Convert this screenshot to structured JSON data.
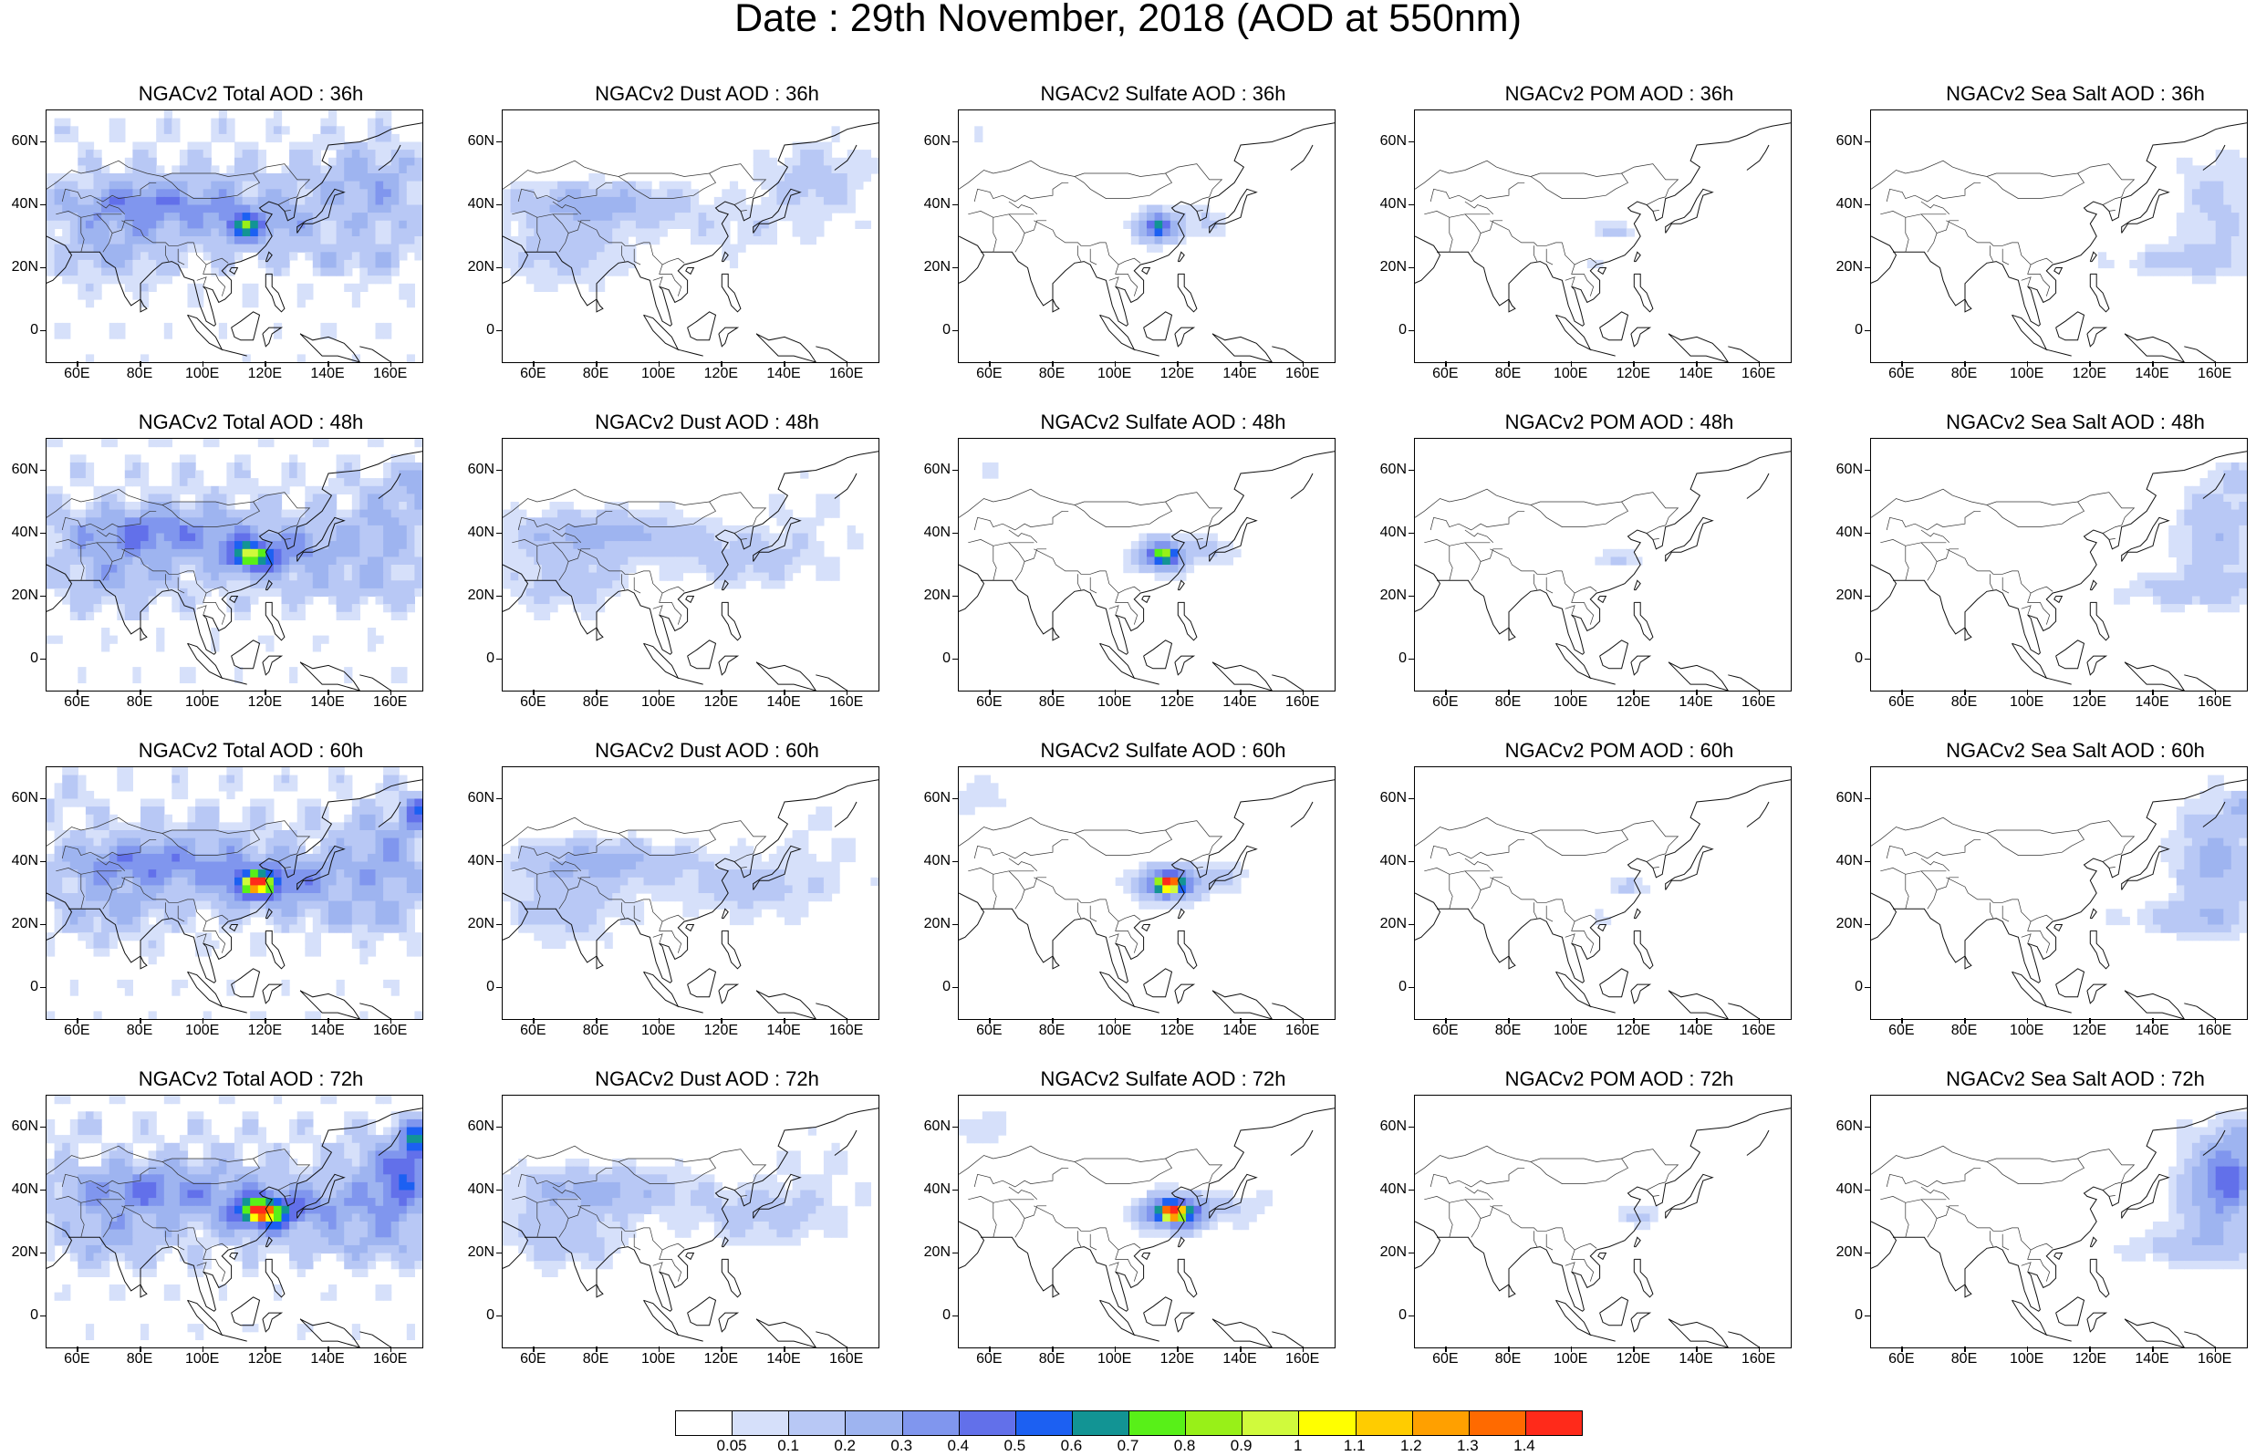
{
  "title": "Date : 29th November, 2018 (AOD at 550nm)",
  "axes": {
    "y_ticks": [
      "60N",
      "40N",
      "20N",
      "0"
    ],
    "x_ticks": [
      "60E",
      "80E",
      "100E",
      "120E",
      "140E",
      "160E"
    ]
  },
  "rows": [
    {
      "hour": "36h",
      "panels": [
        {
          "title": "NGACv2 Total AOD : 36h",
          "field": "total"
        },
        {
          "title": "NGACv2 Dust AOD : 36h",
          "field": "dust"
        },
        {
          "title": "NGACv2 Sulfate AOD : 36h",
          "field": "sulfate"
        },
        {
          "title": "NGACv2 POM AOD : 36h",
          "field": "pom"
        },
        {
          "title": "NGACv2 Sea Salt AOD : 36h",
          "field": "seasalt"
        }
      ]
    },
    {
      "hour": "48h",
      "panels": [
        {
          "title": "NGACv2 Total AOD : 48h",
          "field": "total"
        },
        {
          "title": "NGACv2 Dust AOD : 48h",
          "field": "dust"
        },
        {
          "title": "NGACv2 Sulfate AOD : 48h",
          "field": "sulfate"
        },
        {
          "title": "NGACv2 POM AOD : 48h",
          "field": "pom"
        },
        {
          "title": "NGACv2 Sea Salt AOD : 48h",
          "field": "seasalt"
        }
      ]
    },
    {
      "hour": "60h",
      "panels": [
        {
          "title": "NGACv2 Total AOD : 60h",
          "field": "total"
        },
        {
          "title": "NGACv2 Dust AOD : 60h",
          "field": "dust"
        },
        {
          "title": "NGACv2 Sulfate AOD : 60h",
          "field": "sulfate"
        },
        {
          "title": "NGACv2 POM AOD : 60h",
          "field": "pom"
        },
        {
          "title": "NGACv2 Sea Salt AOD : 60h",
          "field": "seasalt"
        }
      ]
    },
    {
      "hour": "72h",
      "panels": [
        {
          "title": "NGACv2 Total AOD : 72h",
          "field": "total"
        },
        {
          "title": "NGACv2 Dust AOD : 72h",
          "field": "dust"
        },
        {
          "title": "NGACv2 Sulfate AOD : 72h",
          "field": "sulfate"
        },
        {
          "title": "NGACv2 POM AOD : 72h",
          "field": "pom"
        },
        {
          "title": "NGACv2 Sea Salt  AOD : 72h",
          "field": "seasalt"
        }
      ]
    }
  ],
  "colorbar": {
    "labels": [
      "0.05",
      "0.1",
      "0.2",
      "0.3",
      "0.4",
      "0.5",
      "0.6",
      "0.7",
      "0.8",
      "0.9",
      "1",
      "1.1",
      "1.2",
      "1.3",
      "1.4"
    ],
    "colors": [
      "#ffffff",
      "#d6e0fa",
      "#b8c8f5",
      "#9eb4f0",
      "#8096ee",
      "#6270ea",
      "#1c60f2",
      "#129494",
      "#58f018",
      "#98f018",
      "#d0fa3c",
      "#ffff00",
      "#ffcc00",
      "#ffa000",
      "#ff6a00",
      "#ff2a1a"
    ]
  }
}
